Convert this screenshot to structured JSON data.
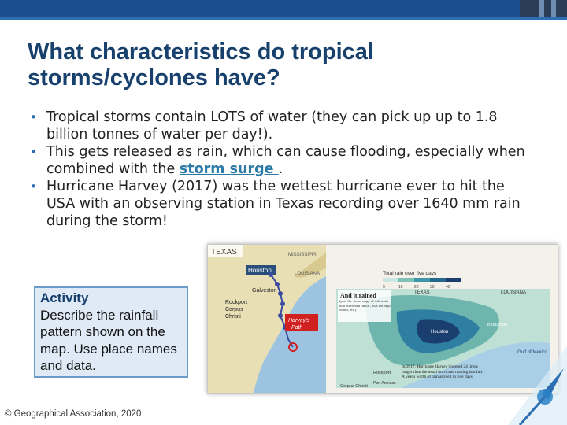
{
  "slide": {
    "title_line1": "What characteristics do tropical",
    "title_line2": "storms/cyclones have?",
    "bullets": [
      {
        "text": "Tropical storms contain LOTS of water (they can pick up up to 1.8 billion tonnes of water per day!)."
      },
      {
        "before": "This gets released as rain, which can cause flooding, especially when combined with the ",
        "link": "storm surge ",
        "after": "."
      },
      {
        "text": "Hurricane Harvey (2017) was the wettest hurricane ever to hit the USA with an observing station in Texas recording over 1640 mm rain during the storm!"
      }
    ],
    "bullet_glyph": "•"
  },
  "activity": {
    "heading": "Activity",
    "body": "Describe the rainfall pattern shown on the map. Use place names and data."
  },
  "map": {
    "left": {
      "state_texas": "TEXAS",
      "state_mississippi": "MISSISSIPPI",
      "state_louisiana": "LOUISIANA",
      "houston": "Houston",
      "galveston": "Galveston",
      "rockport": "Rockport",
      "corpus": "Corpus",
      "christi": "Christi",
      "path_line1": "Harvey's",
      "path_line2": "Path"
    },
    "right": {
      "legend_title": "Total rain over five days",
      "legend_ticks": [
        "5",
        "10",
        "20",
        "30",
        "40"
      ],
      "panel_title": "And it rained",
      "panel_note": "(plus the storm surge of salt water that prevented runoff, plus the high winds, etc.)",
      "texas": "TEXAS",
      "louisiana": "LOUISIANA",
      "houston": "Houston",
      "beaumont": "Beaumont",
      "gulf": "Gulf of Mexico",
      "rockport": "Rockport",
      "corpus": "Corpus Christi",
      "port_aransas": "Port Aransas",
      "caption": "In 2017, Hurricane Harvey lingered 24 times longer than the usual hurricane making landfall. A year's worth of rain arrived in five days."
    }
  },
  "footer": {
    "copyright": "© Geographical Association, 2020"
  },
  "colors": {
    "title": "#17406d",
    "accent": "#2d6fb3",
    "link": "#2d7aa6",
    "activity_bg": "#dfeaf6",
    "activity_border": "#6a9cc9"
  }
}
